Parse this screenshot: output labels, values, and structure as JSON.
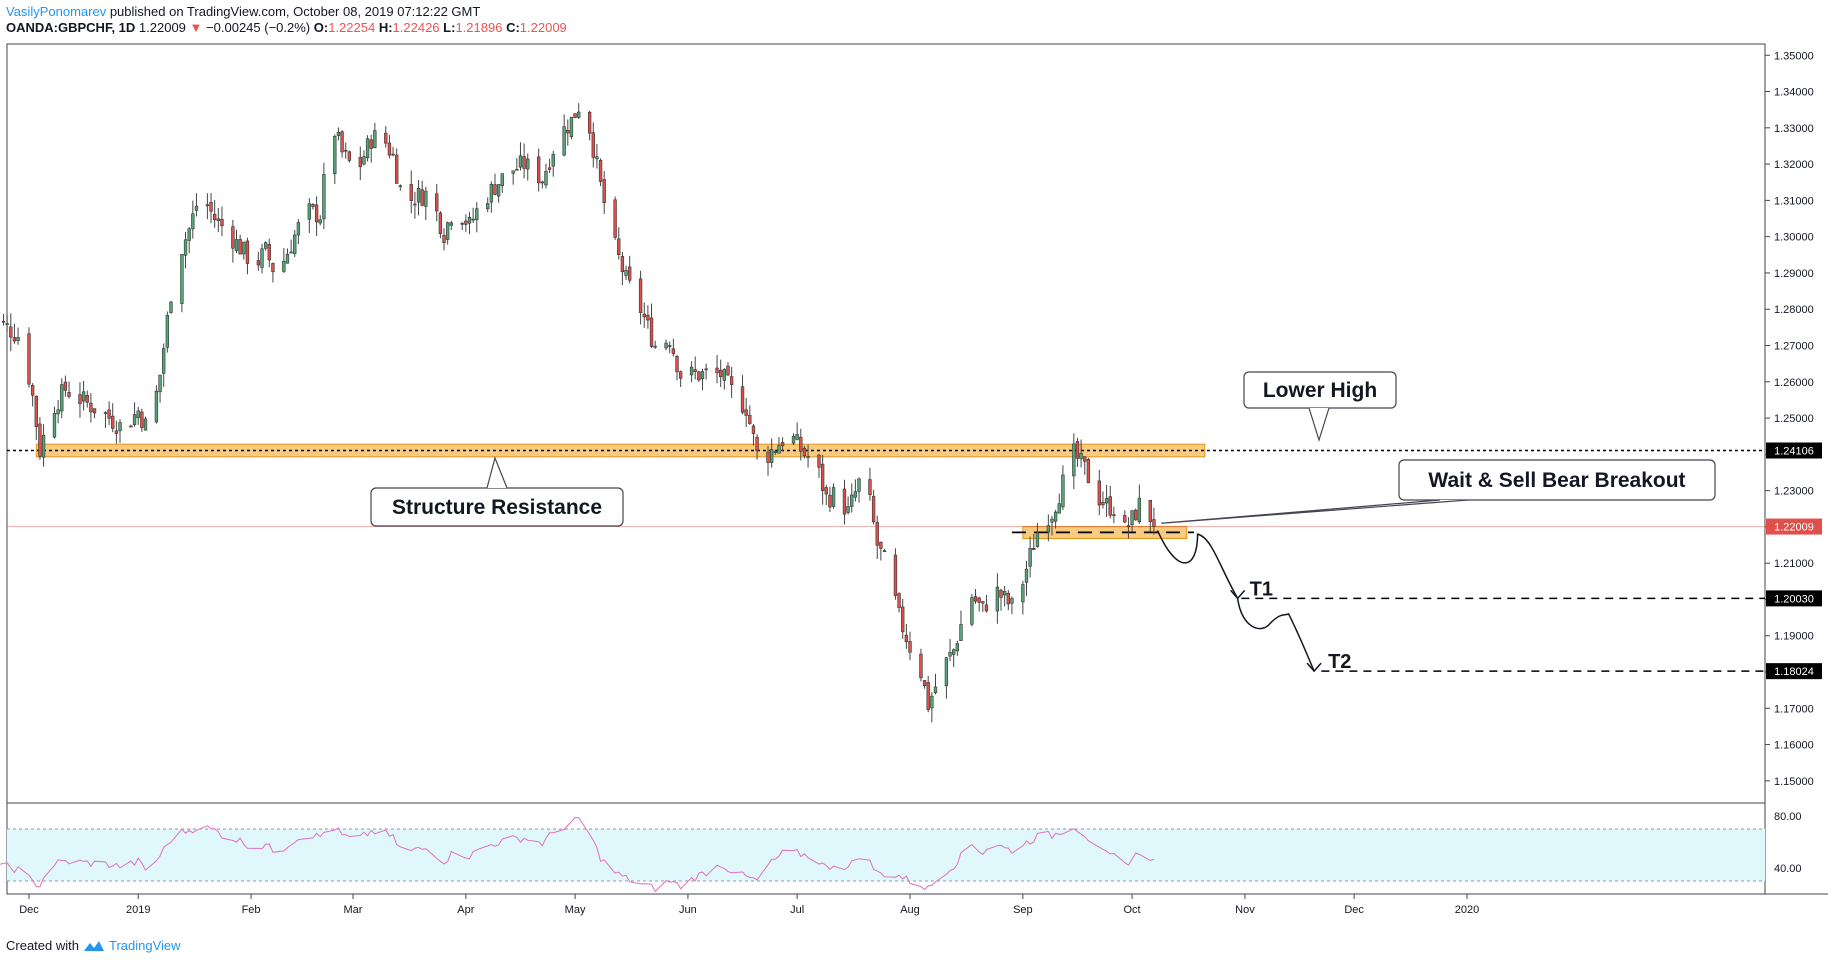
{
  "header": {
    "author": "VasilyPonomarev",
    "published": "published on TradingView.com, October 08, 2019 07:12:22 GMT",
    "symbol": "OANDA:GBPCHF, 1D",
    "last": "1.22009",
    "change": "−0.00245 (−0.2%)",
    "open_label": "O:",
    "open": "1.22254",
    "high_label": "H:",
    "high": "1.22426",
    "low_label": "L:",
    "low": "1.21896",
    "close_label": "C:",
    "close": "1.22009"
  },
  "colors": {
    "up": "#53a675",
    "down": "#e0504b",
    "zone": "#f7b955",
    "rsi_line": "#e070c0",
    "rsi_band": "#e0f8fc",
    "price_line": "#e0504b"
  },
  "chart_data": [
    {
      "type": "candlestick",
      "title": "OANDA:GBPCHF, 1D",
      "ylim": [
        1.145,
        1.352
      ],
      "y_ticks": [
        "1.35000",
        "1.34000",
        "1.33000",
        "1.32000",
        "1.31000",
        "1.30000",
        "1.29000",
        "1.28000",
        "1.27000",
        "1.26000",
        "1.25000",
        "1.24000",
        "1.23000",
        "1.22000",
        "1.21000",
        "1.20000",
        "1.19000",
        "1.18000",
        "1.17000",
        "1.16000",
        "1.15000"
      ],
      "x_ticks": [
        "Dec",
        "2019",
        "Feb",
        "Mar",
        "Apr",
        "May",
        "Jun",
        "Jul",
        "Aug",
        "Sep",
        "Oct",
        "Nov",
        "Dec",
        "2020"
      ],
      "x_tick_days": [
        12,
        42,
        73,
        101,
        132,
        162,
        193,
        223,
        254,
        285,
        315,
        346,
        376,
        407
      ],
      "x_start_date": "2018-11-20",
      "price_path": [
        [
          0,
          1.278
        ],
        [
          6,
          1.275
        ],
        [
          10,
          1.272
        ],
        [
          13,
          1.256
        ],
        [
          15,
          1.241
        ],
        [
          18,
          1.252
        ],
        [
          22,
          1.258
        ],
        [
          28,
          1.254
        ],
        [
          33,
          1.251
        ],
        [
          38,
          1.247
        ],
        [
          42,
          1.252
        ],
        [
          45,
          1.246
        ],
        [
          48,
          1.262
        ],
        [
          52,
          1.292
        ],
        [
          56,
          1.302
        ],
        [
          59,
          1.312
        ],
        [
          63,
          1.305
        ],
        [
          66,
          1.302
        ],
        [
          70,
          1.297
        ],
        [
          74,
          1.292
        ],
        [
          77,
          1.296
        ],
        [
          80,
          1.289
        ],
        [
          84,
          1.298
        ],
        [
          88,
          1.307
        ],
        [
          92,
          1.306
        ],
        [
          95,
          1.332
        ],
        [
          98,
          1.323
        ],
        [
          101,
          1.319
        ],
        [
          103,
          1.32
        ],
        [
          106,
          1.327
        ],
        [
          109,
          1.328
        ],
        [
          112,
          1.322
        ],
        [
          115,
          1.309
        ],
        [
          118,
          1.311
        ],
        [
          122,
          1.312
        ],
        [
          126,
          1.301
        ],
        [
          129,
          1.309
        ],
        [
          133,
          1.303
        ],
        [
          136,
          1.309
        ],
        [
          140,
          1.314
        ],
        [
          144,
          1.318
        ],
        [
          148,
          1.32
        ],
        [
          153,
          1.316
        ],
        [
          157,
          1.327
        ],
        [
          161,
          1.332
        ],
        [
          164,
          1.338
        ],
        [
          166,
          1.33
        ],
        [
          169,
          1.314
        ],
        [
          172,
          1.3
        ],
        [
          176,
          1.288
        ],
        [
          180,
          1.28
        ],
        [
          184,
          1.27
        ],
        [
          188,
          1.272
        ],
        [
          191,
          1.262
        ],
        [
          195,
          1.262
        ],
        [
          199,
          1.262
        ],
        [
          202,
          1.262
        ],
        [
          206,
          1.256
        ],
        [
          209,
          1.253
        ],
        [
          212,
          1.24
        ],
        [
          215,
          1.24
        ],
        [
          219,
          1.244
        ],
        [
          222,
          1.244
        ],
        [
          225,
          1.24
        ],
        [
          228,
          1.238
        ],
        [
          231,
          1.228
        ],
        [
          234,
          1.229
        ],
        [
          237,
          1.224
        ],
        [
          240,
          1.232
        ],
        [
          242,
          1.232
        ],
        [
          245,
          1.215
        ],
        [
          248,
          1.208
        ],
        [
          251,
          1.195
        ],
        [
          254,
          1.187
        ],
        [
          257,
          1.18
        ],
        [
          259,
          1.171
        ],
        [
          261,
          1.176
        ],
        [
          263,
          1.181
        ],
        [
          266,
          1.186
        ],
        [
          268,
          1.193
        ],
        [
          271,
          1.201
        ],
        [
          274,
          1.197
        ],
        [
          277,
          1.203
        ],
        [
          280,
          1.2
        ],
        [
          283,
          1.197
        ],
        [
          285,
          1.205
        ],
        [
          287,
          1.212
        ],
        [
          290,
          1.222
        ],
        [
          293,
          1.224
        ],
        [
          296,
          1.232
        ],
        [
          299,
          1.24
        ],
        [
          302,
          1.236
        ],
        [
          305,
          1.229
        ],
        [
          308,
          1.226
        ],
        [
          311,
          1.225
        ],
        [
          313,
          1.219
        ],
        [
          315,
          1.222
        ],
        [
          318,
          1.228
        ],
        [
          321,
          1.22
        ]
      ],
      "last_price": 1.22009,
      "price_tags": [
        "1.24106",
        "1.22009",
        "1.20030",
        "1.18024"
      ],
      "price_tag_values": [
        1.24106,
        1.22009,
        1.2003,
        1.18024
      ]
    },
    {
      "type": "line",
      "series": "RSI",
      "ylim": [
        20,
        90
      ],
      "y_ticks": [
        "80.00",
        "40.00"
      ],
      "band": [
        30,
        70
      ],
      "values_by_day": [
        [
          0,
          42
        ],
        [
          6,
          41
        ],
        [
          10,
          38
        ],
        [
          13,
          29
        ],
        [
          15,
          27
        ],
        [
          18,
          43
        ],
        [
          22,
          45
        ],
        [
          28,
          44
        ],
        [
          33,
          43
        ],
        [
          38,
          41
        ],
        [
          42,
          45
        ],
        [
          45,
          36
        ],
        [
          48,
          50
        ],
        [
          52,
          66
        ],
        [
          56,
          69
        ],
        [
          59,
          72
        ],
        [
          63,
          69
        ],
        [
          66,
          64
        ],
        [
          70,
          61
        ],
        [
          74,
          55
        ],
        [
          77,
          58
        ],
        [
          80,
          51
        ],
        [
          84,
          60
        ],
        [
          88,
          66
        ],
        [
          92,
          64
        ],
        [
          95,
          74
        ],
        [
          98,
          65
        ],
        [
          101,
          62
        ],
        [
          103,
          63
        ],
        [
          106,
          68
        ],
        [
          109,
          68
        ],
        [
          112,
          63
        ],
        [
          115,
          51
        ],
        [
          118,
          54
        ],
        [
          122,
          55
        ],
        [
          126,
          45
        ],
        [
          129,
          53
        ],
        [
          133,
          49
        ],
        [
          136,
          55
        ],
        [
          140,
          59
        ],
        [
          144,
          62
        ],
        [
          148,
          63
        ],
        [
          153,
          59
        ],
        [
          157,
          70
        ],
        [
          161,
          74
        ],
        [
          164,
          80
        ],
        [
          166,
          66
        ],
        [
          169,
          48
        ],
        [
          172,
          38
        ],
        [
          176,
          32
        ],
        [
          180,
          28
        ],
        [
          184,
          24
        ],
        [
          188,
          30
        ],
        [
          191,
          26
        ],
        [
          195,
          33
        ],
        [
          199,
          38
        ],
        [
          202,
          43
        ],
        [
          206,
          36
        ],
        [
          209,
          33
        ],
        [
          212,
          30
        ],
        [
          215,
          42
        ],
        [
          219,
          51
        ],
        [
          222,
          52
        ],
        [
          225,
          50
        ],
        [
          228,
          48
        ],
        [
          231,
          40
        ],
        [
          234,
          44
        ],
        [
          237,
          40
        ],
        [
          240,
          50
        ],
        [
          242,
          48
        ],
        [
          245,
          36
        ],
        [
          248,
          35
        ],
        [
          251,
          34
        ],
        [
          254,
          30
        ],
        [
          257,
          27
        ],
        [
          259,
          24
        ],
        [
          261,
          30
        ],
        [
          263,
          36
        ],
        [
          266,
          42
        ],
        [
          268,
          49
        ],
        [
          271,
          58
        ],
        [
          274,
          52
        ],
        [
          277,
          60
        ],
        [
          280,
          55
        ],
        [
          283,
          53
        ],
        [
          285,
          58
        ],
        [
          287,
          61
        ],
        [
          290,
          66
        ],
        [
          293,
          65
        ],
        [
          296,
          69
        ],
        [
          299,
          72
        ],
        [
          302,
          66
        ],
        [
          305,
          55
        ],
        [
          308,
          50
        ],
        [
          311,
          48
        ],
        [
          313,
          43
        ],
        [
          315,
          47
        ],
        [
          318,
          55
        ],
        [
          321,
          45
        ]
      ]
    }
  ],
  "annotations": {
    "lower_high": "Lower High",
    "wait_sell": "Wait & Sell Bear Breakout",
    "structure": "Structure Resistance",
    "t1": "T1",
    "t2": "T2"
  },
  "footer": {
    "created_with": "Created with",
    "brand": "TradingView"
  }
}
